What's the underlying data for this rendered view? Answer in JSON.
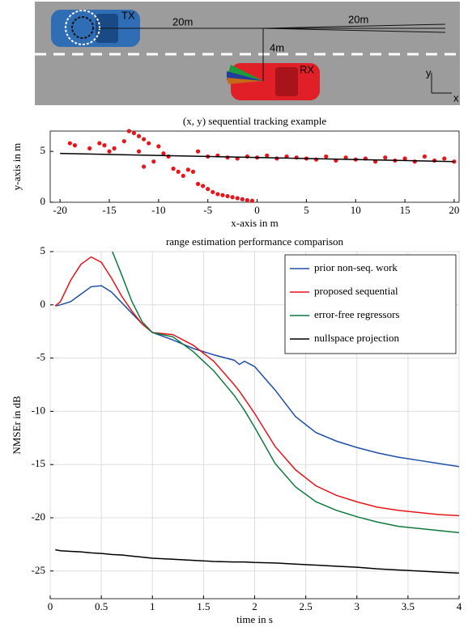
{
  "diagram": {
    "labels": {
      "tx": "TX",
      "rx": "RX",
      "dist_left": "20m",
      "dist_right": "20m",
      "dist_lateral": "4m",
      "axis_y": "y",
      "axis_x": "x"
    }
  },
  "chart_data": [
    {
      "type": "scatter",
      "title": "(x, y) sequential tracking example",
      "x_label": "x-axis in m",
      "y_label": "y-axis in m",
      "xlim": [
        -21,
        20.5
      ],
      "ylim": [
        0,
        7
      ],
      "xticks": [
        -20,
        -15,
        -10,
        -5,
        0,
        5,
        10,
        15,
        20
      ],
      "yticks": [
        0,
        5
      ],
      "grid": false,
      "series": [
        {
          "style": "markers",
          "color": "#e8141a",
          "x": [
            -19,
            -18.5,
            -17,
            -16,
            -15.5,
            -15,
            -14.5,
            -13.5,
            -13,
            -12.5,
            -12,
            -11.5,
            -11,
            -12,
            -11.5,
            -10.5,
            -10,
            -9.5,
            -9,
            -8.5,
            -8,
            -7.5,
            -7,
            -6.5,
            -6,
            -5.5,
            -5,
            -4.5,
            -4,
            -3.5,
            -3,
            -2.5,
            -2,
            -1.5,
            -1,
            -0.5,
            -6,
            -5,
            -4,
            -3,
            -2,
            -1,
            0,
            1,
            2,
            3,
            4,
            5,
            6,
            7,
            8,
            9,
            10,
            11,
            12,
            13,
            14,
            15,
            16,
            17,
            18,
            19,
            20
          ],
          "values": [
            5.8,
            5.6,
            5.3,
            5.8,
            5.6,
            5.0,
            5.3,
            6.0,
            7.0,
            6.8,
            6.5,
            6.2,
            5.8,
            5.0,
            3.5,
            4.0,
            5.5,
            4.8,
            4.5,
            3.3,
            3.0,
            2.6,
            3.2,
            3.0,
            1.8,
            1.6,
            1.3,
            1.0,
            0.8,
            0.7,
            0.6,
            0.5,
            0.4,
            0.3,
            0.2,
            0.15,
            5.0,
            4.5,
            4.6,
            4.4,
            4.3,
            4.5,
            4.4,
            4.6,
            4.3,
            4.5,
            4.4,
            4.3,
            4.2,
            4.5,
            4.1,
            4.4,
            4.2,
            4.3,
            4.0,
            4.4,
            4.1,
            4.3,
            4.0,
            4.5,
            4.1,
            4.3,
            4.0
          ]
        },
        {
          "style": "line",
          "color": "#000000",
          "x": [
            -20,
            20
          ],
          "values": [
            4.8,
            4.0
          ]
        }
      ]
    },
    {
      "type": "line",
      "title": "range estimation performance comparison",
      "x_label": "time in s",
      "y_label": "NMSEr in dB",
      "xlim": [
        0,
        4
      ],
      "ylim": [
        -27.6,
        5
      ],
      "xticks": [
        0,
        0.5,
        1,
        1.5,
        2,
        2.5,
        3,
        3.5,
        4
      ],
      "yticks": [
        -25,
        -20,
        -15,
        -10,
        -5,
        0,
        5
      ],
      "grid": true,
      "legend": "top-right",
      "x": [
        0.05,
        0.1,
        0.2,
        0.3,
        0.4,
        0.5,
        0.6,
        0.7,
        0.8,
        0.9,
        1.0,
        1.2,
        1.4,
        1.6,
        1.8,
        1.85,
        1.9,
        2.0,
        2.2,
        2.4,
        2.6,
        2.8,
        3.0,
        3.2,
        3.4,
        3.6,
        3.8,
        4.0
      ],
      "series": [
        {
          "name": "prior non-seq. work",
          "color": "#1f4fa8",
          "values": [
            -0.1,
            0,
            0.3,
            1.0,
            1.7,
            1.8,
            1.2,
            0.2,
            -0.8,
            -1.8,
            -2.6,
            -3.3,
            -4.1,
            -4.7,
            -5.2,
            -5.6,
            -5.3,
            -5.8,
            -8.0,
            -10.5,
            -12.0,
            -12.8,
            -13.4,
            -13.9,
            -14.3,
            -14.6,
            -14.9,
            -15.2
          ]
        },
        {
          "name": "proposed sequential",
          "color": "#e8141a",
          "values": [
            -0.1,
            0.3,
            2.3,
            3.8,
            4.5,
            4.0,
            2.5,
            0.8,
            -0.6,
            -1.8,
            -2.6,
            -2.8,
            -3.8,
            -5.3,
            -7.5,
            -8.1,
            -8.8,
            -10.2,
            -13.3,
            -15.5,
            -17.0,
            -17.9,
            -18.5,
            -19.0,
            -19.3,
            -19.5,
            -19.7,
            -19.8
          ]
        },
        {
          "name": "error-free regressors",
          "color": "#0f7a3c",
          "values": [
            null,
            null,
            null,
            null,
            null,
            null,
            5.2,
            2.8,
            0.3,
            -1.6,
            -2.6,
            -3.0,
            -4.4,
            -6.2,
            -8.5,
            -9.2,
            -9.9,
            -11.5,
            -14.9,
            -17.1,
            -18.5,
            -19.3,
            -19.9,
            -20.4,
            -20.8,
            -21.0,
            -21.2,
            -21.4
          ]
        },
        {
          "name": "nullspace projection",
          "color": "#000000",
          "values": [
            -23.0,
            -23.1,
            -23.15,
            -23.2,
            -23.3,
            -23.35,
            -23.45,
            -23.5,
            -23.6,
            -23.7,
            -23.8,
            -23.9,
            -24.0,
            -24.1,
            -24.15,
            -24.15,
            -24.15,
            -24.2,
            -24.25,
            -24.35,
            -24.45,
            -24.55,
            -24.65,
            -24.8,
            -24.9,
            -25.0,
            -25.1,
            -25.2
          ]
        }
      ]
    }
  ]
}
